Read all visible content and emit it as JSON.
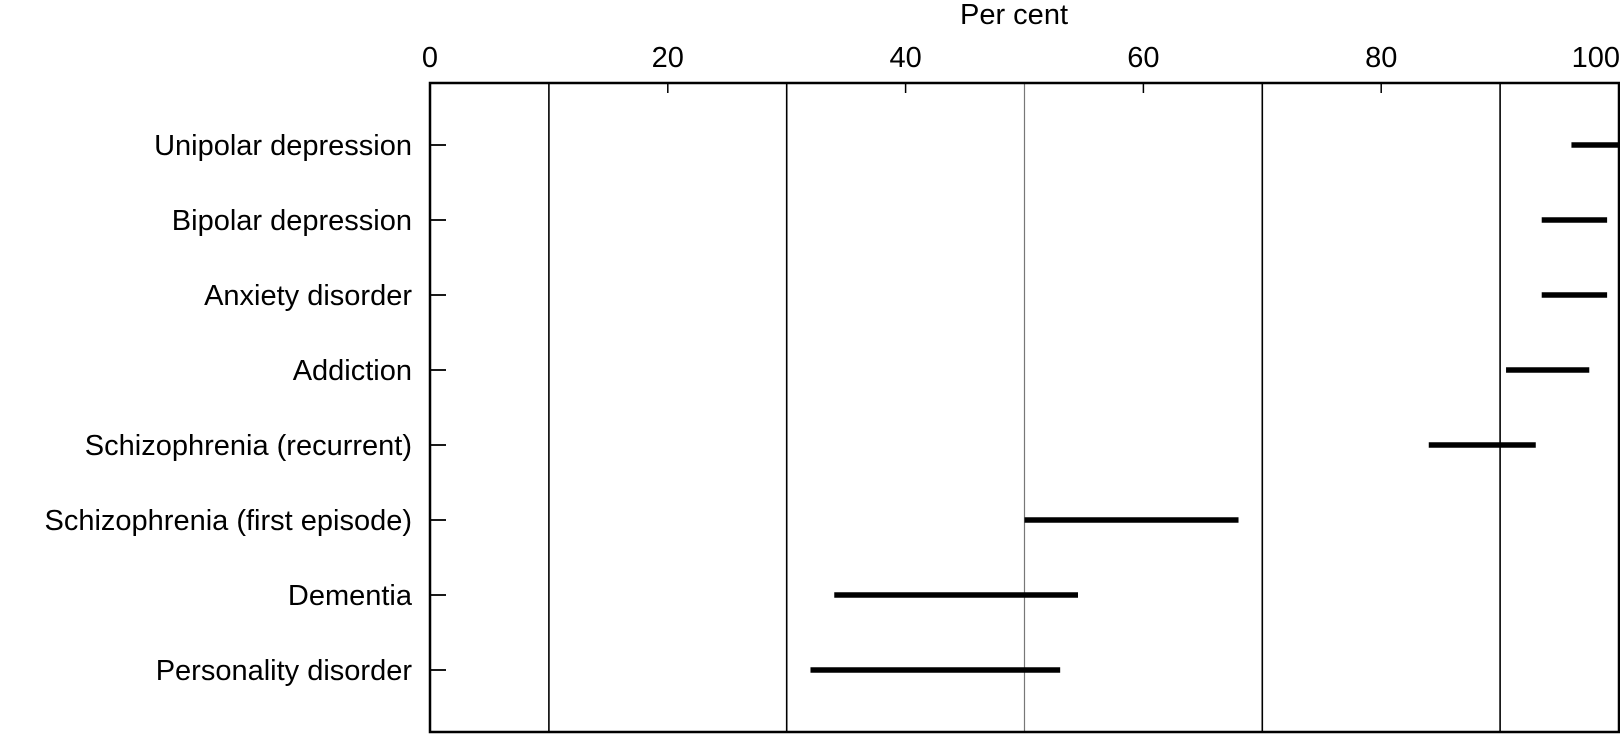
{
  "chart_data": {
    "type": "range-bar",
    "title": "",
    "xlabel": "Per cent",
    "ylabel": "",
    "xlim": [
      0,
      100
    ],
    "x_ticks": [
      "0",
      "20",
      "40",
      "60",
      "80",
      "100"
    ],
    "x_axis_position": "top",
    "grid": true,
    "vertical_reference_lines": [
      10,
      30,
      50,
      70,
      90
    ],
    "legend": "none",
    "line_color": "#000000",
    "categories": [
      "Unipolar depression",
      "Bipolar depression",
      "Anxiety disorder",
      "Addiction",
      "Schizophrenia (recurrent)",
      "Schizophrenia (first episode)",
      "Dementia",
      "Personality disorder"
    ],
    "ranges": [
      {
        "low": 96,
        "high": 100
      },
      {
        "low": 93.5,
        "high": 99
      },
      {
        "low": 93.5,
        "high": 99
      },
      {
        "low": 90.5,
        "high": 97.5
      },
      {
        "low": 84,
        "high": 93
      },
      {
        "low": 50,
        "high": 68
      },
      {
        "low": 34,
        "high": 54.5
      },
      {
        "low": 32,
        "high": 53
      }
    ]
  }
}
